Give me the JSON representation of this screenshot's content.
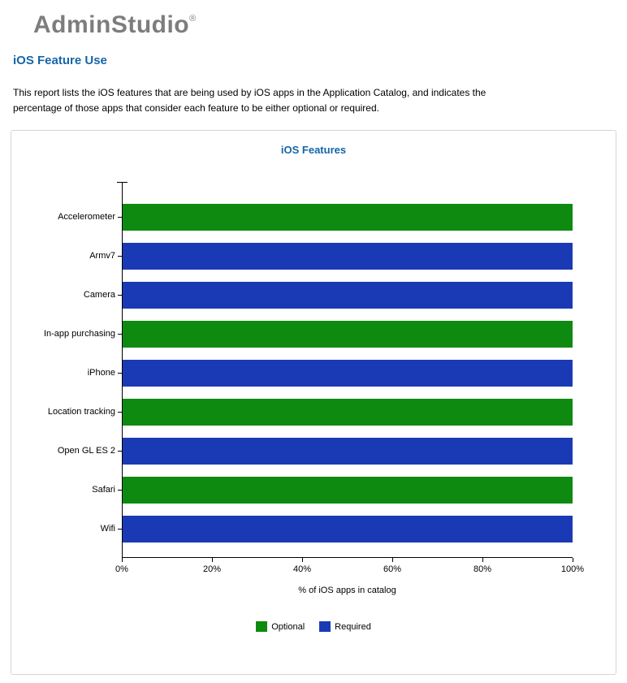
{
  "header": {
    "logo_text": "AdminStudio",
    "logo_mark": "®",
    "page_title": "iOS Feature Use",
    "description_line1": "This report lists the iOS features that are being used by iOS apps in the Application Catalog, and indicates the",
    "description_line2": "percentage of those apps  that consider each feature to be either optional or required."
  },
  "chart_data": {
    "type": "bar",
    "orientation": "horizontal",
    "title": "iOS Features",
    "categories": [
      "Accelerometer",
      "Armv7",
      "Camera",
      "In-app purchasing",
      "iPhone",
      "Location tracking",
      "Open GL ES 2",
      "Safari",
      "Wifi"
    ],
    "series": [
      {
        "name": "Optional",
        "color": "#0E8A10",
        "values": [
          100,
          0,
          0,
          100,
          0,
          100,
          0,
          100,
          0
        ]
      },
      {
        "name": "Required",
        "color": "#1A3AB5",
        "values": [
          0,
          100,
          100,
          0,
          100,
          0,
          100,
          0,
          100
        ]
      }
    ],
    "xlabel": "% of iOS apps in catalog",
    "xlim": [
      0,
      100
    ],
    "x_ticks": [
      {
        "value": 0,
        "label": "0%"
      },
      {
        "value": 20,
        "label": "20%"
      },
      {
        "value": 40,
        "label": "40%"
      },
      {
        "value": 60,
        "label": "60%"
      },
      {
        "value": 80,
        "label": "80%"
      },
      {
        "value": 100,
        "label": "100%"
      }
    ],
    "grid": false,
    "legend_position": "bottom",
    "legend": [
      {
        "label": "Optional",
        "color": "#0E8A10"
      },
      {
        "label": "Required",
        "color": "#1A3AB5"
      }
    ]
  }
}
